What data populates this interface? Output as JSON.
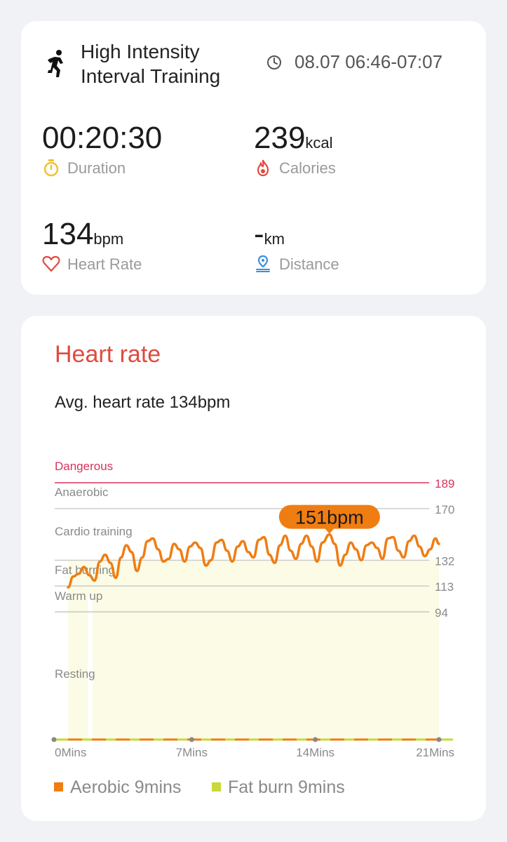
{
  "workout": {
    "title_line1": "High Intensity",
    "title_line2": "Interval Training",
    "time_range": "08.07 06:46-07:07",
    "icon": "running-person-icon"
  },
  "stats": {
    "duration": {
      "value": "00:20:30",
      "unit": "",
      "label": "Duration",
      "icon": "stopwatch-icon"
    },
    "calories": {
      "value": "239",
      "unit": "kcal",
      "label": "Calories",
      "icon": "flame-icon"
    },
    "heart_rate": {
      "value": "134",
      "unit": "bpm",
      "label": "Heart Rate",
      "icon": "heart-icon"
    },
    "distance": {
      "value": "-",
      "unit": "km",
      "label": "Distance",
      "icon": "location-pin-icon"
    }
  },
  "heart_section": {
    "title": "Heart rate",
    "avg_text": "Avg. heart rate 134bpm",
    "tooltip": "151bpm"
  },
  "colors": {
    "accent_red": "#e04a3f",
    "danger_line": "#d8335a",
    "line_orange": "#ef7d12",
    "fill_yellow": "#fbfbe6",
    "aerobic": "#ef7d12",
    "fat_burn": "#c9d83a",
    "duration_icon": "#f2c12e",
    "distance_icon": "#3b8fe0"
  },
  "legend": [
    {
      "label": "Aerobic 9mins",
      "color": "#ef7d12"
    },
    {
      "label": "Fat burn 9mins",
      "color": "#c9d83a"
    }
  ],
  "chart_data": {
    "type": "line",
    "title": "",
    "xlabel": "",
    "ylabel": "",
    "x_range": [
      0,
      21
    ],
    "x_ticks": [
      {
        "value": 0,
        "label": "0Mins"
      },
      {
        "value": 7,
        "label": "7Mins"
      },
      {
        "value": 14,
        "label": "14Mins"
      },
      {
        "value": 21,
        "label": "21Mins"
      }
    ],
    "y_range": [
      40,
      200
    ],
    "zones": [
      {
        "name": "Dangerous",
        "threshold": 189,
        "label": "189"
      },
      {
        "name": "Anaerobic",
        "threshold": 170,
        "label": "170"
      },
      {
        "name": "Cardio training",
        "threshold": 132,
        "label": "132"
      },
      {
        "name": "Fat burning",
        "threshold": 113,
        "label": "113"
      },
      {
        "name": "Warm up",
        "threshold": 94,
        "label": "94"
      },
      {
        "name": "Resting",
        "threshold": null,
        "label": ""
      }
    ],
    "peak": {
      "x": 14.8,
      "y": 151
    },
    "series": [
      {
        "x": [
          0.0,
          0.3,
          0.6,
          0.9,
          1.2,
          1.5,
          1.8,
          2.1,
          2.4,
          2.7,
          3.0,
          3.3,
          3.6,
          3.9,
          4.2,
          4.5,
          4.8,
          5.1,
          5.4,
          5.7,
          6.0,
          6.3,
          6.6,
          6.9,
          7.2,
          7.5,
          7.8,
          8.1,
          8.4,
          8.7,
          9.0,
          9.3,
          9.6,
          9.9,
          10.2,
          10.5,
          10.8,
          11.1,
          11.4,
          11.7,
          12.0,
          12.3,
          12.6,
          12.9,
          13.2,
          13.5,
          13.8,
          14.1,
          14.4,
          14.8,
          15.1,
          15.4,
          15.7,
          16.0,
          16.3,
          16.6,
          16.9,
          17.2,
          17.5,
          17.8,
          18.1,
          18.4,
          18.7,
          19.0,
          19.3,
          19.6,
          19.9,
          20.2,
          20.5,
          20.8,
          21.0
        ],
        "y": [
          112,
          120,
          122,
          127,
          121,
          117,
          131,
          136,
          130,
          119,
          134,
          143,
          138,
          124,
          134,
          146,
          148,
          140,
          131,
          133,
          144,
          140,
          131,
          142,
          145,
          141,
          128,
          132,
          145,
          147,
          139,
          131,
          142,
          146,
          138,
          134,
          147,
          149,
          136,
          130,
          143,
          150,
          139,
          133,
          144,
          150,
          142,
          131,
          145,
          151,
          144,
          128,
          136,
          145,
          140,
          132,
          143,
          145,
          141,
          133,
          148,
          149,
          139,
          134,
          146,
          150,
          142,
          135,
          140,
          148,
          144
        ]
      }
    ]
  }
}
